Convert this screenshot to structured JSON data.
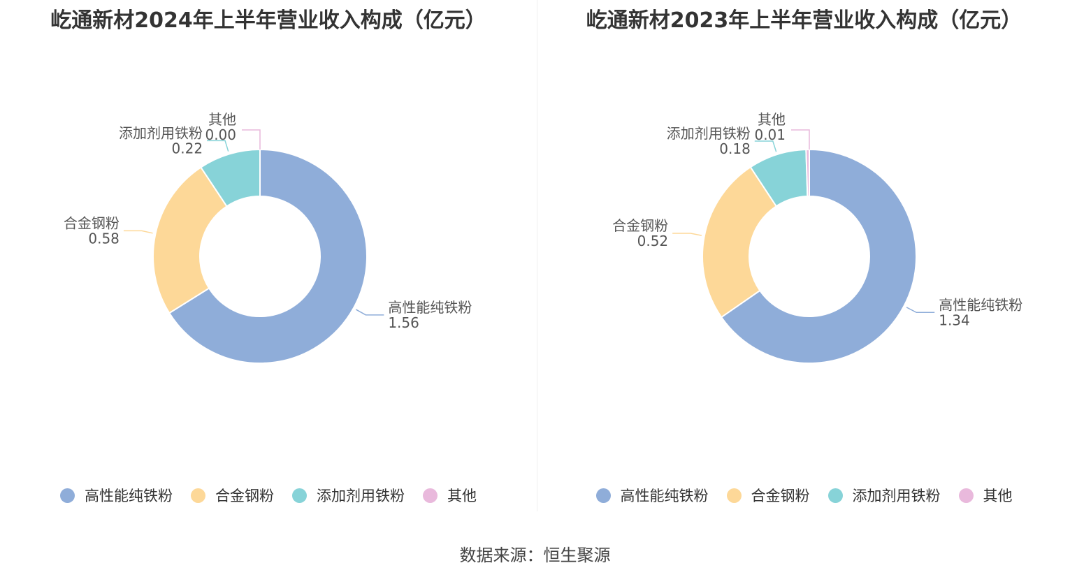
{
  "colors": {
    "高性能纯铁粉": "#8fadd9",
    "合金钢粉": "#fdd898",
    "添加剂用铁粉": "#87d3d8",
    "其他": "#e9b9dc"
  },
  "legend_icon": "circle-dot-icon",
  "chart_data": [
    {
      "type": "donut",
      "title": "屹通新材2024年上半年营业收入构成（亿元）",
      "unit": "亿元",
      "slices": [
        {
          "name": "高性能纯铁粉",
          "value": 1.56,
          "label": "1.56"
        },
        {
          "name": "合金钢粉",
          "value": 0.58,
          "label": "0.58"
        },
        {
          "name": "添加剂用铁粉",
          "value": 0.22,
          "label": "0.22"
        },
        {
          "name": "其他",
          "value": 0.0,
          "label": "0.00"
        }
      ],
      "legend": [
        "高性能纯铁粉",
        "合金钢粉",
        "添加剂用铁粉",
        "其他"
      ],
      "legend_position": "bottom"
    },
    {
      "type": "donut",
      "title": "屹通新材2023年上半年营业收入构成（亿元）",
      "unit": "亿元",
      "slices": [
        {
          "name": "高性能纯铁粉",
          "value": 1.34,
          "label": "1.34"
        },
        {
          "name": "合金钢粉",
          "value": 0.52,
          "label": "0.52"
        },
        {
          "name": "添加剂用铁粉",
          "value": 0.18,
          "label": "0.18"
        },
        {
          "name": "其他",
          "value": 0.01,
          "label": "0.01"
        }
      ],
      "legend": [
        "高性能纯铁粉",
        "合金钢粉",
        "添加剂用铁粉",
        "其他"
      ],
      "legend_position": "bottom"
    }
  ],
  "footer": {
    "source": "数据来源：恒生聚源"
  }
}
